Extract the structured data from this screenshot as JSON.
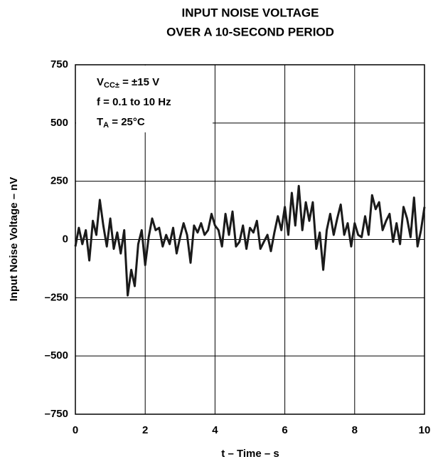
{
  "chart_data": {
    "type": "line",
    "title": [
      "INPUT NOISE VOLTAGE",
      "OVER A 10-SECOND PERIOD"
    ],
    "xlabel": "t – Time – s",
    "ylabel": "Input Noise Voltage – nV",
    "annotations": [
      {
        "main": "V",
        "sub": "CC±",
        "tail": " = ±15 V"
      },
      {
        "main": "f = 0.1 to 10 Hz"
      },
      {
        "main": "T",
        "sub": "A",
        "tail": " = 25°C"
      }
    ],
    "xlim": [
      0,
      10
    ],
    "xticks": [
      0,
      2,
      4,
      6,
      8,
      10
    ],
    "ylim": [
      -750,
      750
    ],
    "yticks": [
      {
        "value": -750,
        "label": "–750"
      },
      {
        "value": -500,
        "label": "–500"
      },
      {
        "value": -250,
        "label": "–250"
      },
      0,
      250,
      500,
      750
    ],
    "grid": true,
    "x": [
      0,
      0.1,
      0.2,
      0.3,
      0.4,
      0.5,
      0.6,
      0.7,
      0.8,
      0.9,
      1,
      1.1,
      1.2,
      1.3,
      1.4,
      1.5,
      1.6,
      1.7,
      1.8,
      1.9,
      2,
      2.1,
      2.2,
      2.3,
      2.4,
      2.5,
      2.6,
      2.7,
      2.8,
      2.9,
      3,
      3.1,
      3.2,
      3.3,
      3.4,
      3.5,
      3.6,
      3.7,
      3.8,
      3.9,
      4,
      4.1,
      4.2,
      4.3,
      4.4,
      4.5,
      4.6,
      4.7,
      4.8,
      4.9,
      5,
      5.1,
      5.2,
      5.3,
      5.4,
      5.5,
      5.6,
      5.7,
      5.8,
      5.9,
      6,
      6.1,
      6.2,
      6.3,
      6.4,
      6.5,
      6.6,
      6.7,
      6.8,
      6.9,
      7,
      7.1,
      7.2,
      7.3,
      7.4,
      7.5,
      7.6,
      7.7,
      7.8,
      7.9,
      8,
      8.1,
      8.2,
      8.3,
      8.4,
      8.5,
      8.6,
      8.7,
      8.8,
      8.9,
      9,
      9.1,
      9.2,
      9.3,
      9.4,
      9.5,
      9.6,
      9.7,
      9.8,
      9.9,
      10
    ],
    "series": [
      {
        "color": "#1a1a1a",
        "values": [
          -30,
          50,
          -20,
          40,
          -90,
          80,
          20,
          170,
          60,
          -30,
          90,
          -40,
          30,
          -60,
          40,
          -240,
          -130,
          -200,
          -20,
          40,
          -110,
          10,
          90,
          40,
          50,
          -30,
          20,
          -20,
          50,
          -60,
          10,
          70,
          20,
          -100,
          60,
          30,
          70,
          20,
          40,
          110,
          60,
          40,
          -30,
          110,
          20,
          120,
          -30,
          -10,
          60,
          -40,
          50,
          30,
          80,
          -40,
          -10,
          20,
          -50,
          30,
          100,
          40,
          140,
          20,
          200,
          60,
          230,
          40,
          160,
          80,
          160,
          -40,
          30,
          -130,
          40,
          110,
          20,
          90,
          150,
          20,
          70,
          -30,
          70,
          20,
          10,
          100,
          20,
          190,
          130,
          160,
          40,
          80,
          110,
          -10,
          70,
          -20,
          140,
          90,
          10,
          180,
          -30,
          40,
          140
        ]
      }
    ]
  }
}
